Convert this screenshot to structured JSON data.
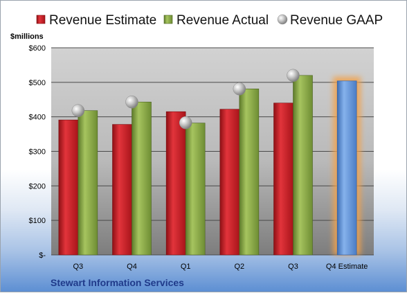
{
  "chart_data": {
    "type": "bar",
    "title": "",
    "ylabel": "$millions",
    "xlabel": "",
    "company": "Stewart Information Services",
    "categories": [
      "Q3",
      "Q4",
      "Q1",
      "Q2",
      "Q3",
      "Q4 Estimate"
    ],
    "y_ticks": [
      "$-",
      "$100",
      "$200",
      "$300",
      "$400",
      "$500",
      "$600"
    ],
    "ylim": [
      0,
      600
    ],
    "grid": true,
    "legend_position": "top",
    "series": [
      {
        "name": "Revenue Estimate",
        "kind": "bar",
        "color": "#c0262d",
        "values": [
          391,
          378,
          415,
          422,
          440,
          null
        ]
      },
      {
        "name": "Revenue Actual",
        "kind": "bar",
        "color": "#7fa040",
        "values": [
          418,
          443,
          382,
          481,
          520,
          504
        ]
      },
      {
        "name": "Revenue GAAP",
        "kind": "marker",
        "color": "#a6a6a6",
        "values": [
          418,
          443,
          383,
          481,
          520,
          null
        ]
      }
    ],
    "estimate_bar_color": "#5b8fd6",
    "estimate_glow_color": "#f2a24c"
  }
}
